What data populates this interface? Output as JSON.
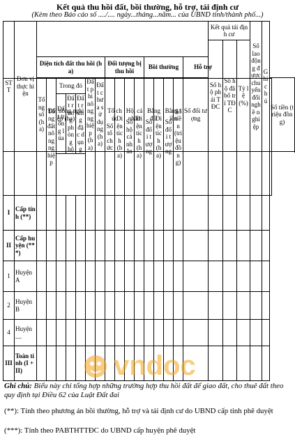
{
  "title": "Kết quả thu hồi đất, bồi thường, hỗ trợ, tái định cư",
  "subtitle": "(Kèm theo Báo cáo số ..../.... ngày...tháng...năm... của UBND tỉnh/thành phố...)",
  "headers": {
    "stt": "STT",
    "don_vi": "Đơn vị thực hiện",
    "ket_qua_tdc": "Kết quả tái định cư",
    "so_ld": "Số lao động được chuyển đổi nghề nghiệp",
    "ghi_chu": "Ghi chú",
    "dien_tich": "Diện tích đất thu hồi (ha)",
    "doi_tuong": "Đối tượng bị thu hồi",
    "boi_thuong": "Bồi thường",
    "ho_tro": "Hỗ trợ",
    "so_ho_phai_tdc": "Số hộ phải TĐC",
    "so_ho_da_bo_tri": "Số hộ đã bố trí TĐC",
    "ty_le": "Tỷ lệ (%)",
    "tong_so": "Tổng số (ha)",
    "dat_nong_nghiep": "Đất nông nghiệp (ha)",
    "dat_phi_nong_nghiep": "Đất phi nông nghiệp (ha)",
    "dat_chua_su_dung": "Đất chưa sử dụng (ha)",
    "to_chuc": "Tổ chức",
    "ho_ca_nhan": "Hộ, cá nhân",
    "bang_dat": "Bằng đất",
    "bang_tien": "Bằng tiền",
    "ht_so_doi_tuong": "Số đối tượng",
    "ht_so_tien": "Số tiền (triệu đồng)",
    "tong_dat_nn": "Tổng đất nông nghiệp",
    "trong_do": "Trong đó",
    "dat_trong_lua": "Đất trồng lúa",
    "dat_rung_phong_ho": "Đất rừng phòng hộ",
    "dat_rung_dac_dung": "Đất rừng đặc dụng",
    "so_to_chuc": "Số tổ chức",
    "dt_to_chuc": "Diện tích (ha)",
    "so_ho_ca_nhan": "Số hộ cá nhân",
    "dt_ho_ca_nhan": "Diện tích (ha)",
    "bd_so_doi_tuong": "Số đối tượng",
    "bd_dien_tich": "Diện tích (ha)",
    "bt_so_doi_tuong": "Số đối tượng",
    "bt_so_tien": "Số tiền (triệu đồng)"
  },
  "rows": [
    {
      "stt": "I",
      "unit": "Cấp tỉnh (**)",
      "bold": true
    },
    {
      "stt": "II",
      "unit": "Cấp huyện (***)",
      "bold": true
    },
    {
      "stt": "1",
      "unit": "Huyện A",
      "bold": false
    },
    {
      "stt": "2",
      "unit": "Huyện B",
      "bold": false
    },
    {
      "stt": "4",
      "unit": "Huyện ....",
      "bold": false
    },
    {
      "stt": "III",
      "unit": "Toàn tỉnh (I + II)",
      "bold": true
    }
  ],
  "notes": {
    "label": "Ghi chú:",
    "main": "Biểu này chỉ tổng hợp những trường hợp thu hồi đất để giao đất, cho thuê đất theo quy định tại Điều 62 của Luật Đất đai",
    "n2": "(**): Tính theo phương án bồi thường, hỗ trợ và tái định cư do UBND cấp tỉnh phê duyệt",
    "n3": "(***): Tính theo PABTHTTĐC do UBND cấp huyện phê duyệt"
  },
  "watermark": "vndoc",
  "colors": {
    "watermark": "#f3a31b"
  }
}
